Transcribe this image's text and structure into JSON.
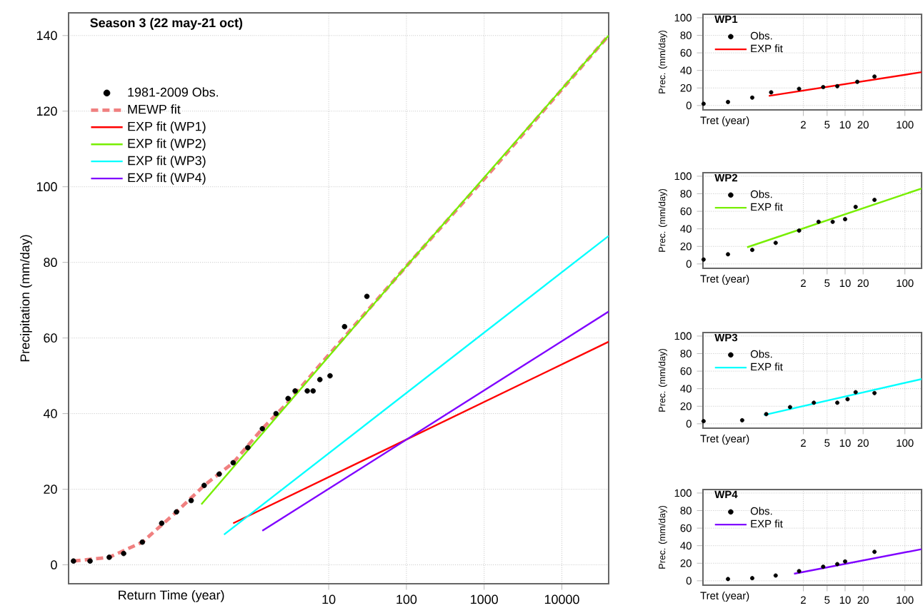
{
  "chart_data": [
    {
      "type": "line",
      "title": "Season 3 (22 may-21 oct)",
      "xlabel": "Return Time (year)",
      "ylabel": "Precipitation (mm/day)",
      "log": "x",
      "xlim": [
        0.0045,
        40000
      ],
      "ylim": [
        -5,
        146
      ],
      "xticks": [
        10,
        100,
        1000,
        10000
      ],
      "yticks": [
        0,
        20,
        40,
        60,
        80,
        100,
        120,
        140
      ],
      "grid": true,
      "legend": "top left",
      "series": [
        {
          "name": "1981-2009 Obs.",
          "type": "scatter",
          "color": "#000000",
          "x": [
            0.0052,
            0.0085,
            0.015,
            0.023,
            0.04,
            0.071,
            0.11,
            0.17,
            0.25,
            0.39,
            0.59,
            0.91,
            1.4,
            2.1,
            3.0,
            3.7,
            5.3,
            6.3,
            7.7,
            10.4,
            16,
            31
          ],
          "values": [
            1,
            1,
            2,
            3,
            6,
            11,
            14,
            17,
            21,
            24,
            27,
            31,
            36,
            40,
            44,
            46,
            46,
            46,
            49,
            50,
            63,
            71
          ]
        },
        {
          "name": "MEWP fit",
          "line_style": "dashed",
          "color": "#f08080",
          "x": [
            0.0052,
            0.015,
            0.04,
            0.11,
            0.25,
            0.59,
            1.4,
            3.0,
            7.8,
            100,
            1100,
            40000
          ],
          "values": [
            1,
            2,
            6,
            14,
            21,
            27,
            36,
            43,
            53,
            79,
            103,
            140
          ]
        },
        {
          "name": "EXP fit (WP1)",
          "color": "#ff0000",
          "x": [
            0.59,
            40000
          ],
          "values": [
            11,
            59
          ]
        },
        {
          "name": "EXP fit (WP2)",
          "color": "#77ee00",
          "x": [
            0.23,
            100,
            40000
          ],
          "values": [
            16,
            79,
            140
          ]
        },
        {
          "name": "EXP fit (WP3)",
          "color": "#00ffff",
          "x": [
            0.45,
            40000
          ],
          "values": [
            8,
            87
          ]
        },
        {
          "name": "EXP fit (WP4)",
          "color": "#7f00ff",
          "x": [
            1.4,
            40000
          ],
          "values": [
            9,
            67
          ]
        }
      ]
    },
    {
      "type": "line",
      "title": "WP1",
      "xlabel": "Tret (year)",
      "ylabel": "Prec. (mm/day)",
      "log": "x",
      "xlim": [
        0.042,
        190
      ],
      "ylim": [
        -5,
        104
      ],
      "xticks": [
        2,
        5,
        10,
        20,
        100
      ],
      "yticks": [
        0,
        20,
        40,
        60,
        80,
        100
      ],
      "grid": true,
      "legend": "top left",
      "series": [
        {
          "name": "Obs.",
          "type": "scatter",
          "color": "#000000",
          "x": [
            0.043,
            0.11,
            0.28,
            0.58,
            1.7,
            4.3,
            7.4,
            16,
            31
          ],
          "values": [
            2,
            4,
            9,
            15,
            19,
            21,
            22,
            27,
            33
          ]
        },
        {
          "name": "EXP fit",
          "color": "#ff0000",
          "x": [
            0.53,
            190
          ],
          "values": [
            11,
            38
          ]
        }
      ]
    },
    {
      "type": "line",
      "title": "WP2",
      "xlabel": "Tret (year)",
      "ylabel": "Prec. (mm/day)",
      "log": "x",
      "xlim": [
        0.042,
        190
      ],
      "ylim": [
        -5,
        104
      ],
      "xticks": [
        2,
        5,
        10,
        20,
        100
      ],
      "yticks": [
        0,
        20,
        40,
        60,
        80,
        100
      ],
      "grid": true,
      "legend": "top left",
      "series": [
        {
          "name": "Obs.",
          "type": "scatter",
          "color": "#000000",
          "x": [
            0.043,
            0.11,
            0.28,
            0.69,
            1.7,
            3.6,
            6.2,
            10,
            15,
            31
          ],
          "values": [
            5,
            11,
            16,
            24,
            38,
            48,
            48,
            51,
            65,
            73
          ]
        },
        {
          "name": "EXP fit",
          "color": "#77ee00",
          "x": [
            0.23,
            190
          ],
          "values": [
            19,
            86
          ]
        }
      ]
    },
    {
      "type": "line",
      "title": "WP3",
      "xlabel": "Tret (year)",
      "ylabel": "Prec. (mm/day)",
      "log": "x",
      "xlim": [
        0.042,
        190
      ],
      "ylim": [
        -5,
        104
      ],
      "xticks": [
        2,
        5,
        10,
        20,
        100
      ],
      "yticks": [
        0,
        20,
        40,
        60,
        80,
        100
      ],
      "grid": true,
      "legend": "top left",
      "series": [
        {
          "name": "Obs.",
          "type": "scatter",
          "color": "#000000",
          "x": [
            0.043,
            0.19,
            0.48,
            1.2,
            3.0,
            7.4,
            11,
            15,
            31
          ],
          "values": [
            3,
            4,
            11,
            19,
            24,
            24,
            28,
            36,
            35
          ]
        },
        {
          "name": "EXP fit",
          "color": "#00ffff",
          "x": [
            0.44,
            190
          ],
          "values": [
            10,
            51
          ]
        }
      ]
    },
    {
      "type": "line",
      "title": "WP4",
      "xlabel": "Tret (year)",
      "ylabel": "Prec. (mm/day)",
      "log": "x",
      "xlim": [
        0.042,
        190
      ],
      "ylim": [
        -5,
        104
      ],
      "xticks": [
        2,
        5,
        10,
        20,
        100
      ],
      "yticks": [
        0,
        20,
        40,
        60,
        80,
        100
      ],
      "grid": true,
      "legend": "top left",
      "series": [
        {
          "name": "Obs.",
          "type": "scatter",
          "color": "#000000",
          "x": [
            0.11,
            0.28,
            0.69,
            1.7,
            4.3,
            7.4,
            10,
            31
          ],
          "values": [
            2,
            3,
            6,
            11,
            16,
            19,
            22,
            33
          ]
        },
        {
          "name": "EXP fit",
          "color": "#7f00ff",
          "x": [
            1.4,
            190
          ],
          "values": [
            8,
            36
          ]
        }
      ]
    }
  ]
}
